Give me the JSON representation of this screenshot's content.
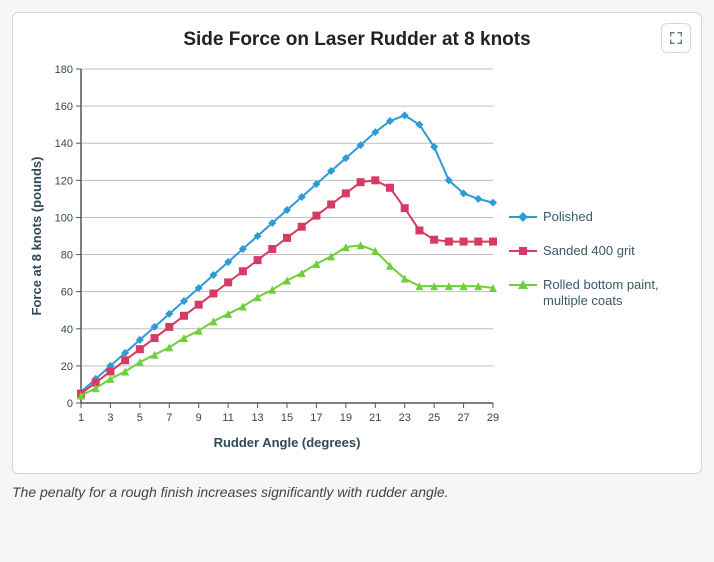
{
  "chart": {
    "type": "line",
    "title": "Side Force on Laser Rudder at 8 knots",
    "x_label": "Rudder Angle (degrees)",
    "y_label": "Force at 8 knots (pounds)",
    "x_values": [
      1,
      2,
      3,
      4,
      5,
      6,
      7,
      8,
      9,
      10,
      11,
      12,
      13,
      14,
      15,
      16,
      17,
      18,
      19,
      20,
      21,
      22,
      23,
      24,
      25,
      26,
      27,
      28,
      29
    ],
    "x_tick_labels": [
      1,
      3,
      5,
      7,
      9,
      11,
      13,
      15,
      17,
      19,
      21,
      23,
      25,
      27,
      29
    ],
    "y_ticks": [
      0,
      20,
      40,
      60,
      80,
      100,
      120,
      140,
      160,
      180
    ],
    "xlim": [
      1,
      29
    ],
    "ylim": [
      0,
      180
    ],
    "background_color": "#ffffff",
    "grid_color": "#bfbfbf",
    "axis_color": "#555555",
    "title_fontsize": 19,
    "label_fontsize": 13,
    "tick_fontsize": 11,
    "line_width": 2,
    "marker_size": 4,
    "series": [
      {
        "name": "Polished",
        "color": "#2e9bd6",
        "marker": "diamond",
        "y": [
          6,
          13,
          20,
          27,
          34,
          41,
          48,
          55,
          62,
          69,
          76,
          83,
          90,
          97,
          104,
          111,
          118,
          125,
          132,
          139,
          146,
          152,
          155,
          150,
          138,
          120,
          113,
          110,
          108
        ]
      },
      {
        "name": "Sanded 400 grit",
        "color": "#d73a63",
        "marker": "square",
        "y": [
          5,
          11,
          17,
          23,
          29,
          35,
          41,
          47,
          53,
          59,
          65,
          71,
          77,
          83,
          89,
          95,
          101,
          107,
          113,
          119,
          120,
          116,
          105,
          93,
          88,
          87,
          87,
          87,
          87
        ]
      },
      {
        "name": "Rolled bottom paint, multiple coats",
        "color": "#6fcf3a",
        "marker": "triangle",
        "y": [
          4,
          8,
          13,
          17,
          22,
          26,
          30,
          35,
          39,
          44,
          48,
          52,
          57,
          61,
          66,
          70,
          75,
          79,
          84,
          85,
          82,
          74,
          67,
          63,
          63,
          63,
          63,
          63,
          62
        ]
      }
    ]
  },
  "caption": "The penalty for a rough finish increases significantly with rudder angle.",
  "expand_icon": "expand"
}
